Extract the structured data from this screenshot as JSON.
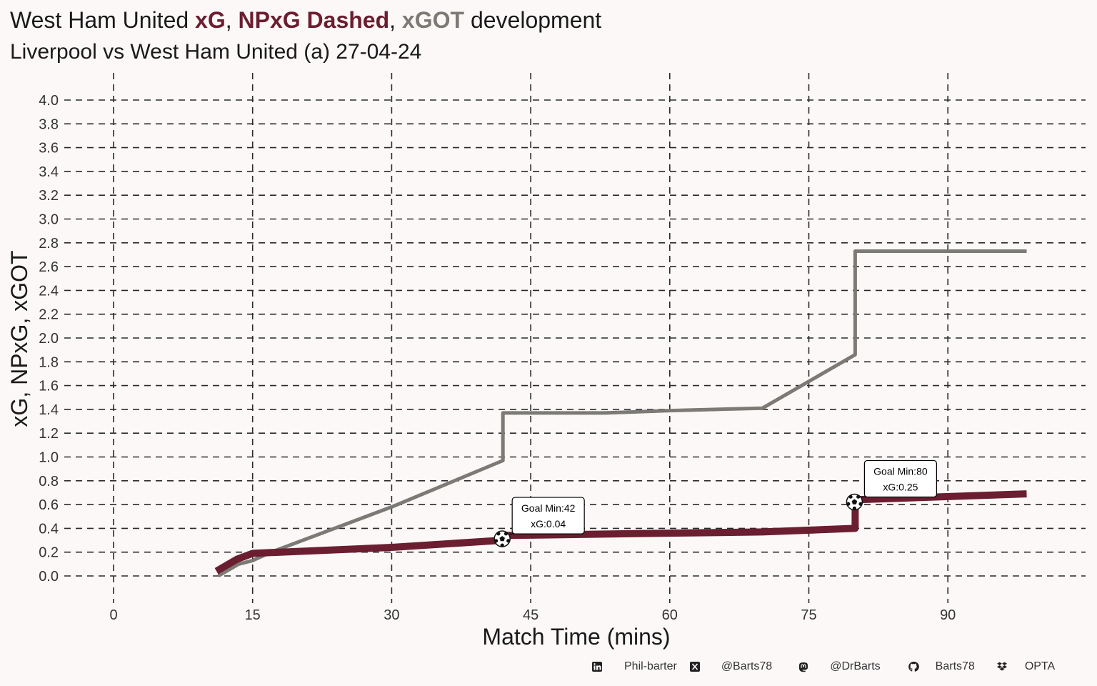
{
  "title": {
    "prefix": "West Ham United ",
    "xg": "xG",
    "sep1": ", ",
    "npxg": "NPxG Dashed",
    "sep2": ", ",
    "xgot": "xGOT",
    "suffix": " development"
  },
  "subtitle": "Liverpool vs West Ham United (a) 27-04-24",
  "colors": {
    "xg": "#6b1e30",
    "xgot": "#7b7a74",
    "grid": "#2a2a2a",
    "background": "#fcf8f8"
  },
  "chart_data": {
    "type": "line",
    "xlabel": "Match Time (mins)",
    "ylabel": "xG, NPxG, xGOT",
    "xlim": [
      0,
      99
    ],
    "ylim": [
      0,
      4.0
    ],
    "x_ticks": [
      "0",
      "15",
      "30",
      "45",
      "60",
      "75",
      "90"
    ],
    "y_ticks": [
      "0.0",
      "0.2",
      "0.4",
      "0.6",
      "0.8",
      "1.0",
      "1.2",
      "1.4",
      "1.6",
      "1.8",
      "2.0",
      "2.2",
      "2.4",
      "2.6",
      "2.8",
      "3.0",
      "3.2",
      "3.4",
      "3.6",
      "3.8",
      "4.0"
    ],
    "grid": true,
    "series": [
      {
        "key": "xgot",
        "color": "#7b7a74",
        "x": [
          11.3,
          13.5,
          15,
          17,
          30,
          42,
          42,
          53,
          60,
          70,
          80,
          80,
          98.5
        ],
        "y": [
          0.0,
          0.1,
          0.13,
          0.2,
          0.58,
          0.97,
          1.37,
          1.37,
          1.39,
          1.41,
          1.86,
          2.73,
          2.73
        ]
      },
      {
        "key": "xg",
        "color": "#6b1e30",
        "x": [
          11.1,
          13.3,
          15,
          30,
          42,
          42,
          60,
          70,
          80,
          80,
          98.5
        ],
        "y": [
          0.04,
          0.14,
          0.19,
          0.24,
          0.3,
          0.34,
          0.36,
          0.37,
          0.4,
          0.64,
          0.69
        ]
      }
    ],
    "annotations": [
      {
        "x": 42,
        "y": 0.33,
        "line1": "Goal Min:42",
        "line2": "xG:0.04"
      },
      {
        "x": 80,
        "y": 0.64,
        "line1": "Goal Min:80",
        "line2": "xG:0.25"
      }
    ]
  },
  "footer": [
    {
      "icon": "linkedin-icon",
      "text": "Phil-barter"
    },
    {
      "icon": "x-twitter-icon",
      "text": "@Barts78"
    },
    {
      "icon": "mastodon-icon",
      "text": "@DrBarts"
    },
    {
      "icon": "github-icon",
      "text": "Barts78"
    },
    {
      "icon": "dropbox-icon",
      "text": "OPTA"
    }
  ]
}
